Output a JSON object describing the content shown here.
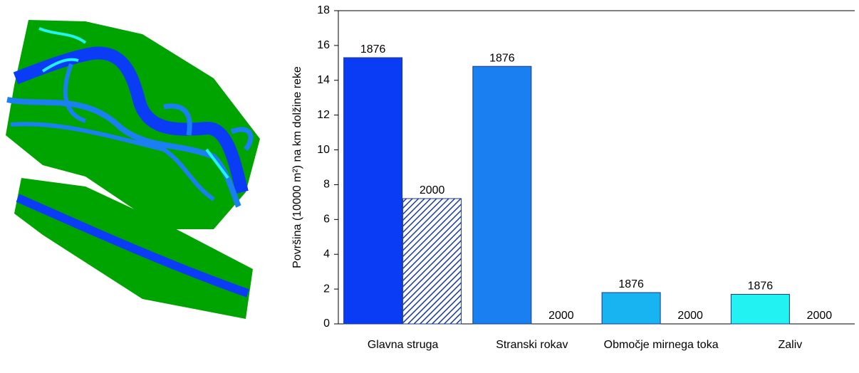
{
  "chart_data": {
    "type": "bar",
    "y_label": "Površina (10000 m²) na km dolžine reke",
    "categories": [
      "Glavna struga",
      "Stranski rokav",
      "Območje mirnega toka",
      "Zaliv"
    ],
    "series": [
      {
        "name": "1876",
        "colors": [
          "#0a3cf5",
          "#1a80f2",
          "#18b4f2",
          "#22f2f2"
        ],
        "values": [
          15.3,
          14.8,
          1.8,
          1.7
        ]
      },
      {
        "name": "2000",
        "color": "#1a3aa0",
        "hatch": true,
        "values": [
          7.2,
          0,
          0,
          0
        ]
      }
    ],
    "ylim": [
      0,
      18
    ],
    "yticks": [
      0,
      2,
      4,
      6,
      8,
      10,
      12,
      14,
      16,
      18
    ]
  }
}
